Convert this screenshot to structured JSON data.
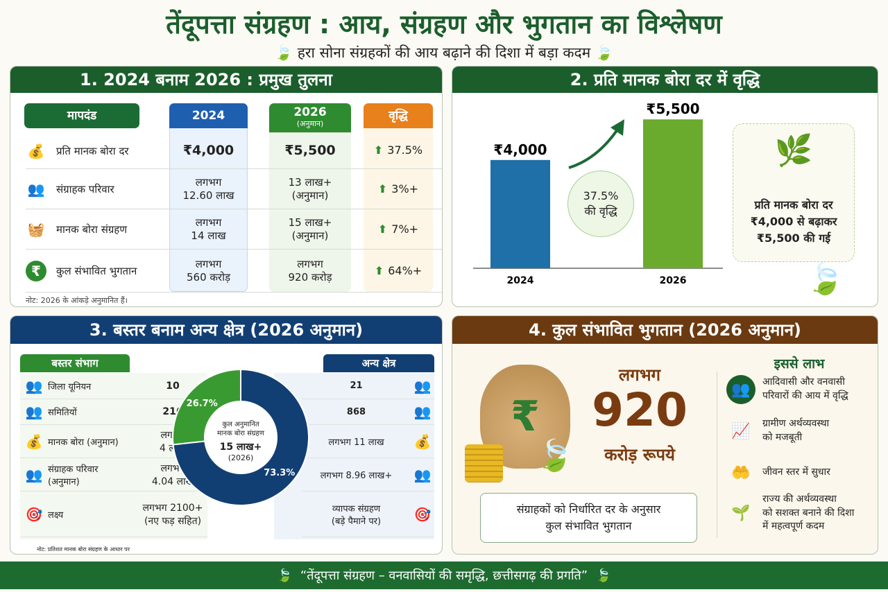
{
  "header": {
    "title": "तेंदूपत्ता संग्रहण : आय, संग्रहण और भुगतान का विश्लेषण",
    "subtitle": "हरा सोना संग्रहकों की आय बढ़ाने की दिशा में बड़ा कदम",
    "icon": "leaf-icon"
  },
  "panel1": {
    "title": "1. 2024 बनाम 2026 : प्रमुख तुलना",
    "columns": {
      "param": "मापदंड",
      "y2024": "2024",
      "y2026": "2026",
      "y2026_sub": "(अनुमान)",
      "growth": "वृद्धि"
    },
    "rows": [
      {
        "icon": "sack-icon",
        "label": "प्रति मानक बोरा दर",
        "v2024": "₹4,000",
        "v2026": "₹5,500",
        "growth": "37.5%"
      },
      {
        "icon": "people-icon",
        "label": "संग्राहक परिवार",
        "v2024": "लगभग\n12.60 लाख",
        "v2026": "13 लाख+\n(अनुमान)",
        "growth": "3%+"
      },
      {
        "icon": "basket-icon",
        "label": "मानक बोरा संग्रहण",
        "v2024": "लगभग\n14 लाख",
        "v2026": "15 लाख+\n(अनुमान)",
        "growth": "7%+"
      },
      {
        "icon": "rupee-icon",
        "label": "कुल संभावित भुगतान",
        "v2024": "लगभग\n560 करोड़",
        "v2026": "लगभग\n920 करोड़",
        "growth": "64%+"
      }
    ],
    "note": "नोट: 2026 के आंकड़े अनुमानित हैं।",
    "colors": {
      "param": "#1b6b34",
      "y2024": "#1f5fb0",
      "y2026": "#2e8b30",
      "growth": "#e8801c"
    }
  },
  "panel2": {
    "title": "2. प्रति मानक बोरा दर में वृद्धि",
    "growth_badge": "37.5%\nकी वृद्धि",
    "callout": "प्रति मानक बोरा दर\n₹4,000 से बढ़ाकर\n₹5,500 की गई"
  },
  "panel3": {
    "title": "3. बस्तर बनाम अन्य क्षेत्र (2026 अनुमान)",
    "left_head": "बस्तर संभाग",
    "right_head": "अन्य क्षेत्र",
    "rows": [
      {
        "icon": "people-icon",
        "label": "जिला यूनियन",
        "bastar": "10",
        "other": "21"
      },
      {
        "icon": "people-icon",
        "label": "समितियों",
        "bastar": "216",
        "other": "868"
      },
      {
        "icon": "sack-icon",
        "label": "मानक बोरा (अनुमान)",
        "bastar": "लगभग\n4 लाख",
        "other": "लगभग 11 लाख"
      },
      {
        "icon": "people-icon",
        "label": "संग्राहक परिवार\n(अनुमान)",
        "bastar": "लगभग\n4.04 लाख",
        "other": "लगभग 8.96 लाख+"
      },
      {
        "icon": "target-icon",
        "label": "लक्ष्य",
        "bastar": "लगभग 2100+\n(नए फड़ सहित)",
        "other": "व्यापक संग्रहण\n(बड़े पैमाने पर)"
      }
    ],
    "donut_center": {
      "line1": "कुल अनुमानित\nमानक बोरा संग्रहण",
      "value": "15 लाख+",
      "year": "(2026)"
    },
    "note": "नोट: प्रतिशत मानक बोरा संग्रहण के आधार पर"
  },
  "panel4": {
    "title": "4. कुल संभावित भुगतान (2026 अनुमान)",
    "approx": "लगभग",
    "amount": "920",
    "unit": "करोड़ रूपये",
    "box": "संग्राहकों को निर्धारित दर के अनुसार\nकुल संभावित भुगतान",
    "benefits_title": "इससे लाभ",
    "benefits": [
      {
        "icon": "community-icon",
        "text": "आदिवासी और वनवासी\nपरिवारों की आय में वृद्धि"
      },
      {
        "icon": "growth-chart-icon",
        "text": "ग्रामीण अर्थव्यवस्था\nको मजबूती"
      },
      {
        "icon": "care-hands-icon",
        "text": "जीवन स्तर में सुधार"
      },
      {
        "icon": "plant-icon",
        "text": "राज्य की अर्थव्यवस्था\nको सशक्त बनाने की दिशा\nमें महत्वपूर्ण कदम"
      }
    ]
  },
  "footer": {
    "quote": "“तेंदूपत्ता संग्रहण – वनवासियों की समृद्धि, छत्तीसगढ़ की प्रगति”"
  },
  "chart_data": [
    {
      "type": "bar",
      "categories": [
        "2024",
        "2026"
      ],
      "values": [
        4000,
        5500
      ],
      "labels": [
        "₹4,000",
        "₹5,500"
      ],
      "colors": [
        "#1f6fa8",
        "#6aab2e"
      ],
      "ylim": [
        0,
        6000
      ]
    },
    {
      "type": "pie",
      "donut": true,
      "slices": [
        {
          "label": "26.7%",
          "value": 26.7,
          "color": "#3a9a32"
        },
        {
          "label": "73.3%",
          "value": 73.3,
          "color": "#123f73"
        }
      ]
    }
  ]
}
